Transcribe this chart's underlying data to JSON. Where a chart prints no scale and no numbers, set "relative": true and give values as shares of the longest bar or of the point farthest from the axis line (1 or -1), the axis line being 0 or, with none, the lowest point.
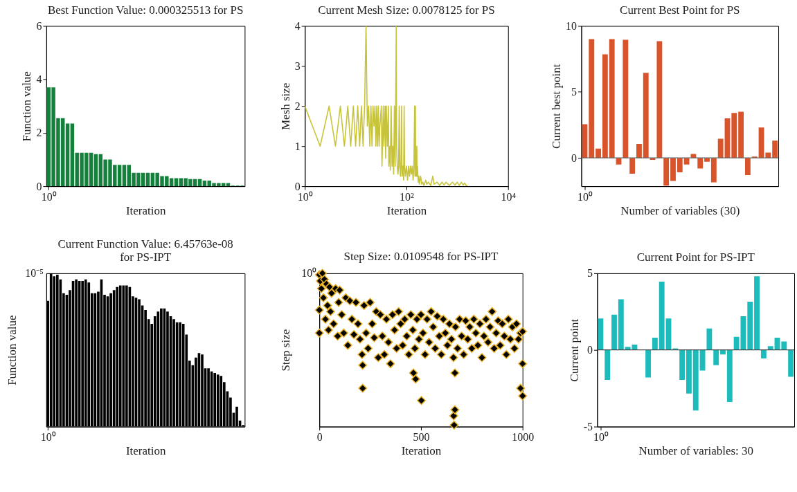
{
  "chart_data": [
    {
      "type": "bar",
      "title": "Best Function Value: 0.000325513 for PS",
      "xlabel": "Iteration",
      "ylabel": "Function value",
      "grid": false,
      "ylim": [
        0,
        6
      ],
      "yticks": [
        0,
        2,
        4,
        6
      ],
      "categories": [
        "10⁰",
        null,
        null,
        null,
        null,
        null,
        null,
        null,
        null,
        null,
        null,
        null,
        null,
        null,
        null,
        null,
        null,
        null,
        null,
        null,
        null,
        null,
        null,
        null,
        null,
        null,
        null,
        null,
        null,
        null,
        null,
        null,
        null,
        null,
        null,
        null,
        null,
        null,
        null,
        null,
        null,
        null
      ],
      "series": [
        {
          "color": "#15803c",
          "values": [
            3.7,
            3.7,
            2.55,
            2.55,
            2.35,
            2.35,
            1.25,
            1.25,
            1.25,
            1.25,
            1.2,
            1.2,
            1.0,
            1.0,
            0.8,
            0.8,
            0.8,
            0.8,
            0.5,
            0.5,
            0.5,
            0.5,
            0.5,
            0.5,
            0.38,
            0.38,
            0.3,
            0.3,
            0.3,
            0.3,
            0.27,
            0.27,
            0.27,
            0.21,
            0.21,
            0.12,
            0.12,
            0.12,
            0.12,
            0.02,
            0.02,
            0.02
          ]
        }
      ]
    },
    {
      "type": "line",
      "title": "Current Mesh Size: 0.0078125 for PS",
      "xlabel": "Iteration",
      "ylabel": "Mesh size",
      "log": "x",
      "grid": false,
      "marker": "none",
      "line_style": "solid",
      "xlim": [
        1,
        10000
      ],
      "xticks": [
        {
          "value": 1,
          "label": "10⁰"
        },
        {
          "value": 100,
          "label": "10²"
        },
        {
          "value": 10000,
          "label": "10⁴"
        }
      ],
      "ylim": [
        0,
        4
      ],
      "yticks": [
        0,
        1,
        2,
        3,
        4
      ],
      "series": [
        {
          "color": "#c8c43a",
          "x": [
            1,
            2,
            3,
            4,
            5,
            6,
            7,
            8,
            9,
            10,
            11,
            12,
            13,
            14,
            15,
            16,
            17,
            18,
            19,
            20,
            21,
            22,
            23,
            24,
            25,
            26,
            27,
            28,
            29,
            30,
            32,
            33,
            35,
            36,
            38,
            39,
            40,
            42,
            44,
            45,
            47,
            48,
            50,
            52,
            54,
            56,
            58,
            60,
            63,
            64,
            66,
            68,
            70,
            72,
            74,
            76,
            78,
            80,
            82,
            85,
            88,
            90,
            92,
            95,
            100,
            105,
            110,
            115,
            120,
            125,
            130,
            135,
            140,
            145,
            147,
            150,
            152,
            155,
            160,
            162,
            165,
            170,
            175,
            180,
            190,
            200,
            210,
            220,
            240,
            250,
            270,
            300,
            330,
            350,
            400,
            450,
            500,
            550,
            600,
            700,
            800,
            900,
            1000,
            1100,
            1200,
            1300,
            1400,
            1500,
            1600
          ],
          "values": [
            2,
            1,
            2,
            1,
            2,
            1,
            2,
            1,
            2,
            1,
            2,
            1,
            2,
            1,
            2,
            4,
            1.5,
            2,
            1,
            2,
            1,
            2,
            1.5,
            2,
            1,
            2,
            1,
            2,
            1,
            1.5,
            2,
            0.5,
            2,
            1,
            2,
            0.7,
            2,
            1,
            2,
            0.5,
            1,
            0.4,
            2,
            0.5,
            1,
            0.3,
            2,
            0.5,
            4,
            1,
            0.5,
            0.3,
            0.5,
            2,
            0.5,
            0.25,
            0.5,
            2,
            0.25,
            0.5,
            0.15,
            2,
            0.5,
            0.25,
            0.5,
            0.15,
            0.5,
            0.25,
            0.5,
            0.3,
            0.5,
            0.15,
            0.5,
            2,
            0.25,
            2,
            0.5,
            0.25,
            1,
            0.25,
            0.5,
            0.1,
            0.25,
            0.05,
            0.25,
            0.05,
            0.1,
            0.02,
            0.15,
            0.05,
            0.1,
            0.02,
            0.25,
            0.05,
            0.1,
            0.02,
            0.1,
            0.03,
            0.1,
            0.02,
            0.1,
            0.03,
            0.1,
            0.02,
            0.1,
            0.03,
            0.08,
            0.02,
            0.01
          ]
        }
      ]
    },
    {
      "type": "bar",
      "title": "Current Best Point for PS",
      "xlabel": "Number of variables (30)",
      "ylabel": "Current best point",
      "log": "x",
      "grid": false,
      "ylim": [
        -2.15,
        10
      ],
      "yticks": [
        0,
        5,
        10
      ],
      "ref_lines": [
        {
          "axis": "y",
          "value": 0,
          "color": "#666666"
        }
      ],
      "categories": [
        "10⁰",
        null,
        null,
        null,
        null,
        null,
        null,
        null,
        null,
        null,
        null,
        null,
        null,
        null,
        null,
        null,
        null,
        null,
        null,
        null,
        null,
        null,
        null,
        null,
        null,
        null,
        null,
        null,
        null
      ],
      "series": [
        {
          "color": "#d9542a",
          "values": [
            2.55,
            9.0,
            0.7,
            7.85,
            9.0,
            -0.5,
            8.95,
            -1.2,
            1.05,
            6.45,
            -0.15,
            8.85,
            -2.1,
            -1.75,
            -1.1,
            -0.5,
            0.3,
            -0.8,
            -0.3,
            -1.85,
            1.45,
            3.0,
            3.4,
            3.5,
            -1.3,
            0.1,
            2.3,
            0.4,
            1.3
          ]
        }
      ]
    },
    {
      "type": "bar",
      "title": "Current Function Value: 6.45763e-08\nfor PS-IPT",
      "xlabel": "Iteration",
      "ylabel": "Function value",
      "grid": false,
      "relative": true,
      "annotations": [
        "10⁻⁵"
      ],
      "categories": [
        "10⁰",
        null,
        null,
        null,
        null,
        null,
        null,
        null,
        null,
        null,
        null,
        null,
        null,
        null,
        null,
        null,
        null,
        null,
        null,
        null,
        null,
        null,
        null,
        null,
        null,
        null,
        null,
        null,
        null,
        null,
        null,
        null,
        null,
        null,
        null,
        null,
        null,
        null,
        null,
        null,
        null,
        null,
        null,
        null,
        null,
        null,
        null,
        null,
        null,
        null,
        null,
        null,
        null,
        null,
        null,
        null,
        null,
        null,
        null,
        null,
        null,
        null,
        null
      ],
      "series": [
        {
          "color": "#000000",
          "values": [
            0.82,
            1.0,
            0.98,
            0.99,
            0.96,
            0.87,
            0.86,
            0.89,
            0.95,
            0.96,
            0.95,
            0.95,
            0.96,
            0.94,
            0.87,
            0.87,
            0.88,
            0.96,
            0.86,
            0.85,
            0.87,
            0.89,
            0.91,
            0.92,
            0.92,
            0.92,
            0.91,
            0.85,
            0.84,
            0.83,
            0.79,
            0.76,
            0.7,
            0.67,
            0.72,
            0.75,
            0.77,
            0.77,
            0.75,
            0.72,
            0.7,
            0.68,
            0.68,
            0.67,
            0.6,
            0.43,
            0.4,
            0.45,
            0.48,
            0.47,
            0.38,
            0.38,
            0.36,
            0.35,
            0.34,
            0.33,
            0.29,
            0.23,
            0.19,
            0.09,
            0.13,
            0.04,
            0.01
          ]
        }
      ]
    },
    {
      "type": "scatter",
      "title": "Step Size: 0.0109548 for PS-IPT",
      "xlabel": "Iteration",
      "ylabel": "Step size",
      "grid": false,
      "marker": "diamond",
      "relative": true,
      "xlim": [
        0,
        1000
      ],
      "xticks": [
        0,
        500,
        1000
      ],
      "annotations": [
        "10⁰"
      ],
      "series": [
        {
          "color": "#000000",
          "x": [
            0,
            0,
            0,
            5,
            10,
            15,
            20,
            25,
            30,
            35,
            40,
            45,
            50,
            55,
            60,
            70,
            80,
            90,
            95,
            100,
            110,
            120,
            130,
            140,
            150,
            160,
            170,
            180,
            190,
            200,
            210,
            213,
            213,
            220,
            230,
            240,
            250,
            260,
            270,
            280,
            290,
            300,
            310,
            320,
            330,
            340,
            350,
            360,
            370,
            380,
            390,
            400,
            410,
            420,
            430,
            440,
            450,
            460,
            463,
            470,
            474,
            480,
            490,
            500,
            502,
            510,
            520,
            530,
            540,
            550,
            560,
            570,
            580,
            590,
            600,
            610,
            620,
            630,
            640,
            650,
            660,
            661,
            663,
            667,
            667,
            670,
            680,
            690,
            700,
            710,
            720,
            730,
            740,
            750,
            760,
            770,
            780,
            790,
            800,
            810,
            820,
            830,
            840,
            850,
            860,
            870,
            880,
            890,
            900,
            910,
            920,
            930,
            940,
            950,
            960,
            970,
            980,
            990,
            990,
            1000,
            1000,
            1000
          ],
          "values": [
            0.99,
            0.61,
            0.76,
            0.95,
            0.9,
            1.0,
            0.84,
            0.96,
            0.7,
            0.93,
            0.79,
            0.63,
            0.91,
            0.75,
            0.87,
            0.67,
            0.9,
            0.59,
            0.81,
            0.89,
            0.73,
            0.61,
            0.84,
            0.53,
            0.82,
            0.7,
            0.6,
            0.81,
            0.67,
            0.57,
            0.47,
            0.4,
            0.25,
            0.79,
            0.61,
            0.51,
            0.81,
            0.67,
            0.58,
            0.75,
            0.45,
            0.73,
            0.59,
            0.47,
            0.7,
            0.55,
            0.41,
            0.73,
            0.63,
            0.51,
            0.75,
            0.67,
            0.53,
            0.7,
            0.59,
            0.47,
            0.73,
            0.63,
            0.35,
            0.51,
            0.31,
            0.7,
            0.57,
            0.73,
            0.17,
            0.61,
            0.47,
            0.7,
            0.55,
            0.75,
            0.65,
            0.51,
            0.72,
            0.59,
            0.47,
            0.7,
            0.61,
            0.53,
            0.67,
            0.57,
            0.45,
            0.07,
            0.01,
            0.11,
            0.35,
            0.65,
            0.51,
            0.7,
            0.59,
            0.47,
            0.69,
            0.57,
            0.65,
            0.51,
            0.7,
            0.61,
            0.53,
            0.67,
            0.45,
            0.59,
            0.7,
            0.55,
            0.65,
            0.75,
            0.51,
            0.61,
            0.69,
            0.53,
            0.67,
            0.59,
            0.47,
            0.7,
            0.57,
            0.65,
            0.51,
            0.67,
            0.57,
            0.61,
            0.25,
            0.62,
            0.2,
            0.41
          ]
        }
      ]
    },
    {
      "type": "bar",
      "title": "Current Point for PS-IPT",
      "xlabel": "Number of variables: 30",
      "ylabel": "Current point",
      "log": "x",
      "grid": false,
      "ylim": [
        -5,
        5
      ],
      "yticks": [
        -5,
        0,
        5
      ],
      "ref_lines": [
        {
          "axis": "y",
          "value": 0,
          "color": "#444444"
        }
      ],
      "categories": [
        "10⁰",
        null,
        null,
        null,
        null,
        null,
        null,
        null,
        null,
        null,
        null,
        null,
        null,
        null,
        null,
        null,
        null,
        null,
        null,
        null,
        null,
        null,
        null,
        null,
        null,
        null,
        null,
        null,
        null
      ],
      "series": [
        {
          "color": "#1cbcbc",
          "values": [
            2.05,
            -1.95,
            2.3,
            3.3,
            0.2,
            0.35,
            0,
            -1.8,
            0.8,
            4.45,
            2.05,
            0.1,
            -1.95,
            -2.85,
            -3.95,
            -1.35,
            1.4,
            -1.0,
            -0.3,
            -3.4,
            0.85,
            2.2,
            3.15,
            4.8,
            -0.55,
            0.25,
            0.8,
            0.55,
            -1.75
          ]
        }
      ]
    }
  ]
}
